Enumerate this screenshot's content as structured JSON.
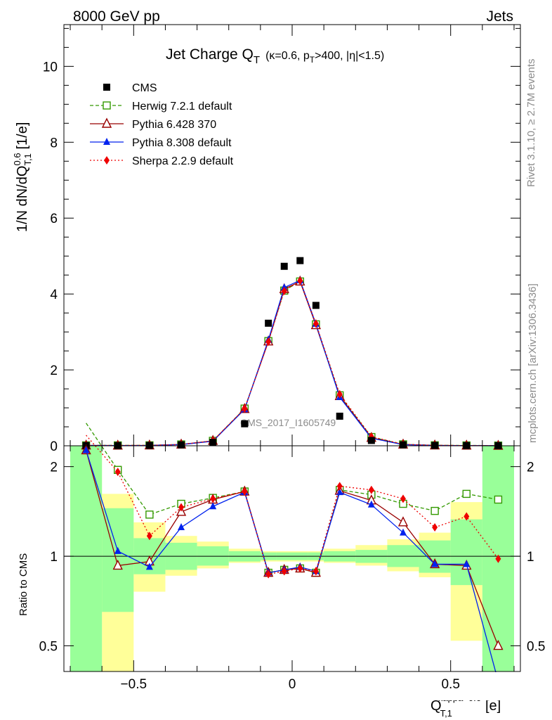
{
  "header": {
    "energy": "8000 GeV pp",
    "category": "Jets",
    "side_rivet": "Rivet 3.1.10, ≥ 2.7M events",
    "side_mcplots": "mcplots.cern.ch [arXiv:1306.3436]",
    "watermark": "CMS_2017_I1605749"
  },
  "title": {
    "main": "Jet Charge Q",
    "main_sub": "T",
    "cond_pre": "(κ=0.6, p",
    "cond_sub": "T",
    "cond_post": ">400, |η|<1.5)"
  },
  "axes": {
    "y_main": {
      "l1": "1/N dN/dQ",
      "sup": "0.6",
      "sub": "T,1",
      "l2": " [1/e]"
    },
    "y_ratio": "Ratio to CMS",
    "x": {
      "q": "Q",
      "sub": "T,1",
      "sup": "kappa=0.6",
      "unit": "[e]"
    }
  },
  "chart_data": [
    {
      "type": "scatter",
      "panel": "main",
      "xlim": [
        -0.72,
        0.72
      ],
      "ylim": [
        0,
        11.1
      ],
      "x_ticks": [
        -0.5,
        0,
        0.5
      ],
      "x_tick_labels": [
        "−0.5",
        "0",
        "0.5"
      ],
      "y_ticks": [
        0,
        2,
        4,
        6,
        8,
        10
      ],
      "y_tick_labels": [
        "0",
        "2",
        "4",
        "6",
        "8",
        "10"
      ],
      "legend_position": "top-left",
      "x": [
        -0.65,
        -0.55,
        -0.45,
        -0.35,
        -0.25,
        -0.15,
        -0.075,
        -0.025,
        0.025,
        0.075,
        0.15,
        0.25,
        0.35,
        0.45,
        0.55,
        0.65
      ],
      "series": [
        {
          "name": "CMS",
          "color": "#000000",
          "marker": "square-filled",
          "line": "none",
          "values": [
            0.004,
            0.005,
            0.009,
            0.025,
            0.09,
            0.58,
            3.23,
            4.73,
            4.88,
            3.7,
            0.78,
            0.14,
            0.025,
            0.009,
            0.005,
            0.003
          ]
        },
        {
          "name": "Herwig 7.2.1 default",
          "color": "#339900",
          "marker": "square-open",
          "line": "dashed",
          "values": [
            0.01,
            0.01,
            0.012,
            0.035,
            0.13,
            0.98,
            2.76,
            4.09,
            4.33,
            3.2,
            1.33,
            0.23,
            0.038,
            0.012,
            0.009,
            0.006
          ]
        },
        {
          "name": "Pythia 6.428 370",
          "color": "#990000",
          "marker": "triangle-open",
          "line": "solid",
          "values": [
            0.009,
            0.006,
            0.01,
            0.034,
            0.13,
            0.97,
            2.75,
            4.13,
            4.33,
            3.18,
            1.31,
            0.21,
            0.033,
            0.01,
            0.005,
            0.002
          ]
        },
        {
          "name": "Pythia 8.308 default",
          "color": "#0022ee",
          "marker": "triangle-filled",
          "line": "solid",
          "values": [
            0.008,
            0.006,
            0.009,
            0.031,
            0.12,
            0.96,
            2.79,
            4.17,
            4.36,
            3.21,
            1.28,
            0.2,
            0.03,
            0.009,
            0.005,
            0.001
          ]
        },
        {
          "name": "Sherpa 2.2.9 default",
          "color": "#ee0000",
          "marker": "diamond-filled",
          "line": "dotted",
          "values": [
            0.009,
            0.009,
            0.01,
            0.035,
            0.13,
            0.98,
            2.74,
            4.08,
            4.35,
            3.22,
            1.36,
            0.24,
            0.04,
            0.011,
            0.006,
            0.003
          ]
        }
      ]
    },
    {
      "type": "line",
      "panel": "ratio",
      "xlim": [
        -0.72,
        0.72
      ],
      "ylim": [
        0.41,
        2.35
      ],
      "log_y": true,
      "y_ticks": [
        0.5,
        1,
        2
      ],
      "y_tick_labels": [
        "0.5",
        "1",
        "2"
      ],
      "reference_line": 1,
      "bin_edges": [
        -0.7,
        -0.6,
        -0.5,
        -0.4,
        -0.3,
        -0.2,
        -0.1,
        -0.05,
        0,
        0.05,
        0.1,
        0.2,
        0.3,
        0.4,
        0.5,
        0.6,
        0.7
      ],
      "band_green": [
        [
          0.1,
          5
        ],
        [
          0.65,
          1.45
        ],
        [
          0.87,
          1.15
        ],
        [
          0.9,
          1.11
        ],
        [
          0.93,
          1.08
        ],
        [
          0.96,
          1.04
        ],
        [
          0.97,
          1.03
        ],
        [
          0.97,
          1.03
        ],
        [
          0.97,
          1.03
        ],
        [
          0.97,
          1.03
        ],
        [
          0.96,
          1.04
        ],
        [
          0.95,
          1.05
        ],
        [
          0.92,
          1.09
        ],
        [
          0.88,
          1.13
        ],
        [
          0.8,
          1.33
        ],
        [
          0.1,
          5
        ]
      ],
      "band_yellow": [
        [
          0.1,
          5
        ],
        [
          0.4,
          1.62
        ],
        [
          0.76,
          1.3
        ],
        [
          0.86,
          1.17
        ],
        [
          0.91,
          1.12
        ],
        [
          0.95,
          1.06
        ],
        [
          0.96,
          1.04
        ],
        [
          0.96,
          1.04
        ],
        [
          0.96,
          1.04
        ],
        [
          0.96,
          1.04
        ],
        [
          0.95,
          1.06
        ],
        [
          0.93,
          1.09
        ],
        [
          0.89,
          1.14
        ],
        [
          0.85,
          1.2
        ],
        [
          0.52,
          1.52
        ],
        [
          0.46,
          1.61
        ]
      ],
      "x": [
        -0.65,
        -0.55,
        -0.45,
        -0.35,
        -0.25,
        -0.15,
        -0.075,
        -0.025,
        0.025,
        0.075,
        0.15,
        0.25,
        0.35,
        0.45,
        0.55,
        0.65
      ],
      "series": [
        {
          "name": "Herwig 7.2.1 default",
          "color": "#339900",
          "line": "dashed",
          "marker": "square-open",
          "values": [
            2.8,
            1.95,
            1.38,
            1.5,
            1.57,
            1.65,
            0.88,
            0.9,
            0.91,
            0.88,
            1.67,
            1.61,
            1.5,
            1.42,
            1.62,
            1.55
          ]
        },
        {
          "name": "Pythia 6.428 370",
          "color": "#990000",
          "line": "solid",
          "marker": "triangle-open",
          "values": [
            2.27,
            0.93,
            0.96,
            1.41,
            1.55,
            1.65,
            0.88,
            0.9,
            0.91,
            0.88,
            1.66,
            1.54,
            1.3,
            0.94,
            0.93,
            0.5
          ]
        },
        {
          "name": "Pythia 8.308 default",
          "color": "#0022ee",
          "line": "solid",
          "marker": "triangle-filled",
          "values": [
            2.27,
            1.04,
            0.92,
            1.25,
            1.47,
            1.64,
            0.88,
            0.9,
            0.92,
            0.89,
            1.64,
            1.49,
            1.2,
            0.94,
            0.94,
            0.38
          ]
        },
        {
          "name": "Sherpa 2.2.9 default",
          "color": "#ee0000",
          "line": "dotted",
          "marker": "diamond-filled",
          "values": [
            2.55,
            1.92,
            1.17,
            1.46,
            1.56,
            1.65,
            0.87,
            0.89,
            0.91,
            0.89,
            1.72,
            1.67,
            1.56,
            1.25,
            1.36,
            0.98
          ]
        }
      ]
    }
  ]
}
